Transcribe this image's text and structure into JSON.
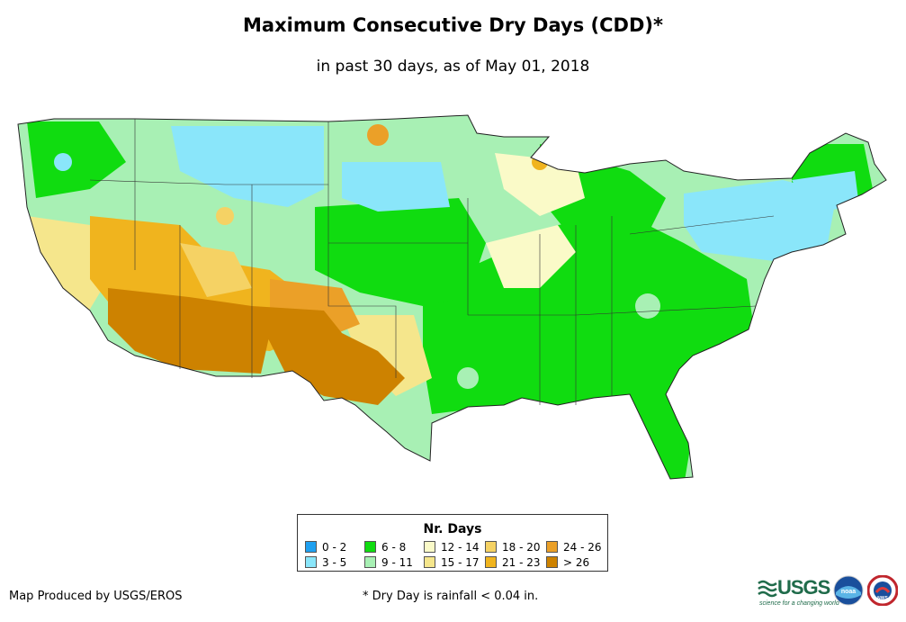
{
  "title": "Maximum Consecutive Dry Days (CDD)*",
  "subtitle": "in past 30 days, as of May 01, 2018",
  "legend": {
    "title": "Nr. Days",
    "items": [
      {
        "label": "0 - 2",
        "color": "#1ea0f0"
      },
      {
        "label": "3 - 5",
        "color": "#8ae6fa"
      },
      {
        "label": "6 - 8",
        "color": "#10dc10"
      },
      {
        "label": "9 - 11",
        "color": "#a8f0b4"
      },
      {
        "label": "12 - 14",
        "color": "#fafac8"
      },
      {
        "label": "15 - 17",
        "color": "#f5e68c"
      },
      {
        "label": "18 - 20",
        "color": "#f5d264"
      },
      {
        "label": "21 - 23",
        "color": "#f0b41e"
      },
      {
        "label": "24 - 26",
        "color": "#eba028"
      },
      {
        "label": "> 26",
        "color": "#cd8200"
      }
    ]
  },
  "footer": {
    "producer": "Map Produced by USGS/EROS",
    "footnote": "* Dry Day is rainfall < 0.04 in."
  },
  "logos": {
    "usgs": "USGS",
    "usgs_tagline": "science for a changing world",
    "noaa": "noaa",
    "nws": "NWS"
  }
}
